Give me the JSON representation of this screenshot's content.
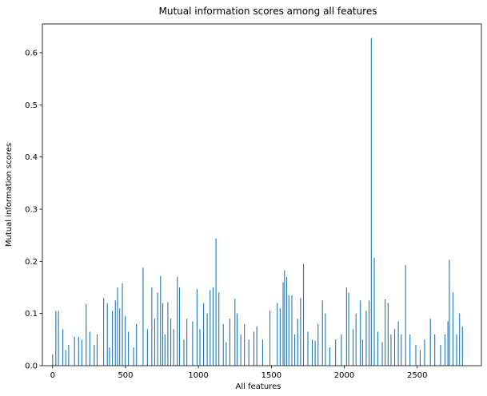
{
  "chart_data": {
    "type": "bar",
    "title": "Mutual information scores among all features",
    "xlabel": "All features",
    "ylabel": "Mutual information scores",
    "xlim": [
      -70,
      2940
    ],
    "ylim": [
      0,
      0.655
    ],
    "xticks": [
      0,
      500,
      1000,
      1500,
      2000,
      2500
    ],
    "yticks": [
      0.0,
      0.1,
      0.2,
      0.3,
      0.4,
      0.5,
      0.6
    ],
    "ytick_labels": [
      "0.0",
      "0.1",
      "0.2",
      "0.3",
      "0.4",
      "0.5",
      "0.6"
    ],
    "grid": false,
    "bar_color": "#1f77b4",
    "series": [
      {
        "x": [
          0,
          22,
          40,
          70,
          90,
          110,
          150,
          178,
          200,
          230,
          255,
          285,
          305,
          350,
          375,
          390,
          410,
          430,
          445,
          460,
          478,
          498,
          520,
          555,
          575,
          620,
          650,
          680,
          700,
          720,
          740,
          755,
          770,
          790,
          810,
          830,
          855,
          870,
          900,
          920,
          960,
          990,
          1010,
          1035,
          1060,
          1080,
          1100,
          1120,
          1140,
          1170,
          1190,
          1215,
          1250,
          1265,
          1290,
          1315,
          1345,
          1380,
          1400,
          1440,
          1490,
          1540,
          1560,
          1580,
          1590,
          1605,
          1620,
          1640,
          1660,
          1680,
          1700,
          1720,
          1750,
          1780,
          1800,
          1820,
          1850,
          1870,
          1900,
          1940,
          1980,
          2015,
          2030,
          2060,
          2080,
          2110,
          2125,
          2150,
          2170,
          2185,
          2205,
          2230,
          2260,
          2280,
          2300,
          2320,
          2345,
          2370,
          2390,
          2420,
          2450,
          2490,
          2520,
          2550,
          2590,
          2620,
          2660,
          2690,
          2710,
          2720,
          2745,
          2770,
          2790,
          2810
        ],
        "values": [
          0.022,
          0.105,
          0.105,
          0.07,
          0.03,
          0.04,
          0.055,
          0.055,
          0.05,
          0.118,
          0.065,
          0.04,
          0.06,
          0.13,
          0.12,
          0.035,
          0.105,
          0.125,
          0.15,
          0.11,
          0.158,
          0.095,
          0.065,
          0.035,
          0.08,
          0.188,
          0.07,
          0.15,
          0.09,
          0.14,
          0.172,
          0.12,
          0.06,
          0.122,
          0.09,
          0.07,
          0.17,
          0.15,
          0.05,
          0.09,
          0.085,
          0.147,
          0.07,
          0.12,
          0.1,
          0.145,
          0.15,
          0.244,
          0.14,
          0.08,
          0.045,
          0.09,
          0.128,
          0.1,
          0.06,
          0.08,
          0.05,
          0.065,
          0.075,
          0.05,
          0.106,
          0.12,
          0.11,
          0.16,
          0.183,
          0.17,
          0.135,
          0.135,
          0.06,
          0.09,
          0.13,
          0.195,
          0.065,
          0.05,
          0.048,
          0.08,
          0.125,
          0.1,
          0.035,
          0.05,
          0.06,
          0.15,
          0.14,
          0.07,
          0.1,
          0.125,
          0.05,
          0.105,
          0.125,
          0.628,
          0.207,
          0.065,
          0.045,
          0.127,
          0.12,
          0.06,
          0.07,
          0.085,
          0.06,
          0.193,
          0.06,
          0.04,
          0.03,
          0.05,
          0.09,
          0.06,
          0.04,
          0.06,
          0.085,
          0.203,
          0.14,
          0.06,
          0.1,
          0.075
        ]
      }
    ]
  }
}
